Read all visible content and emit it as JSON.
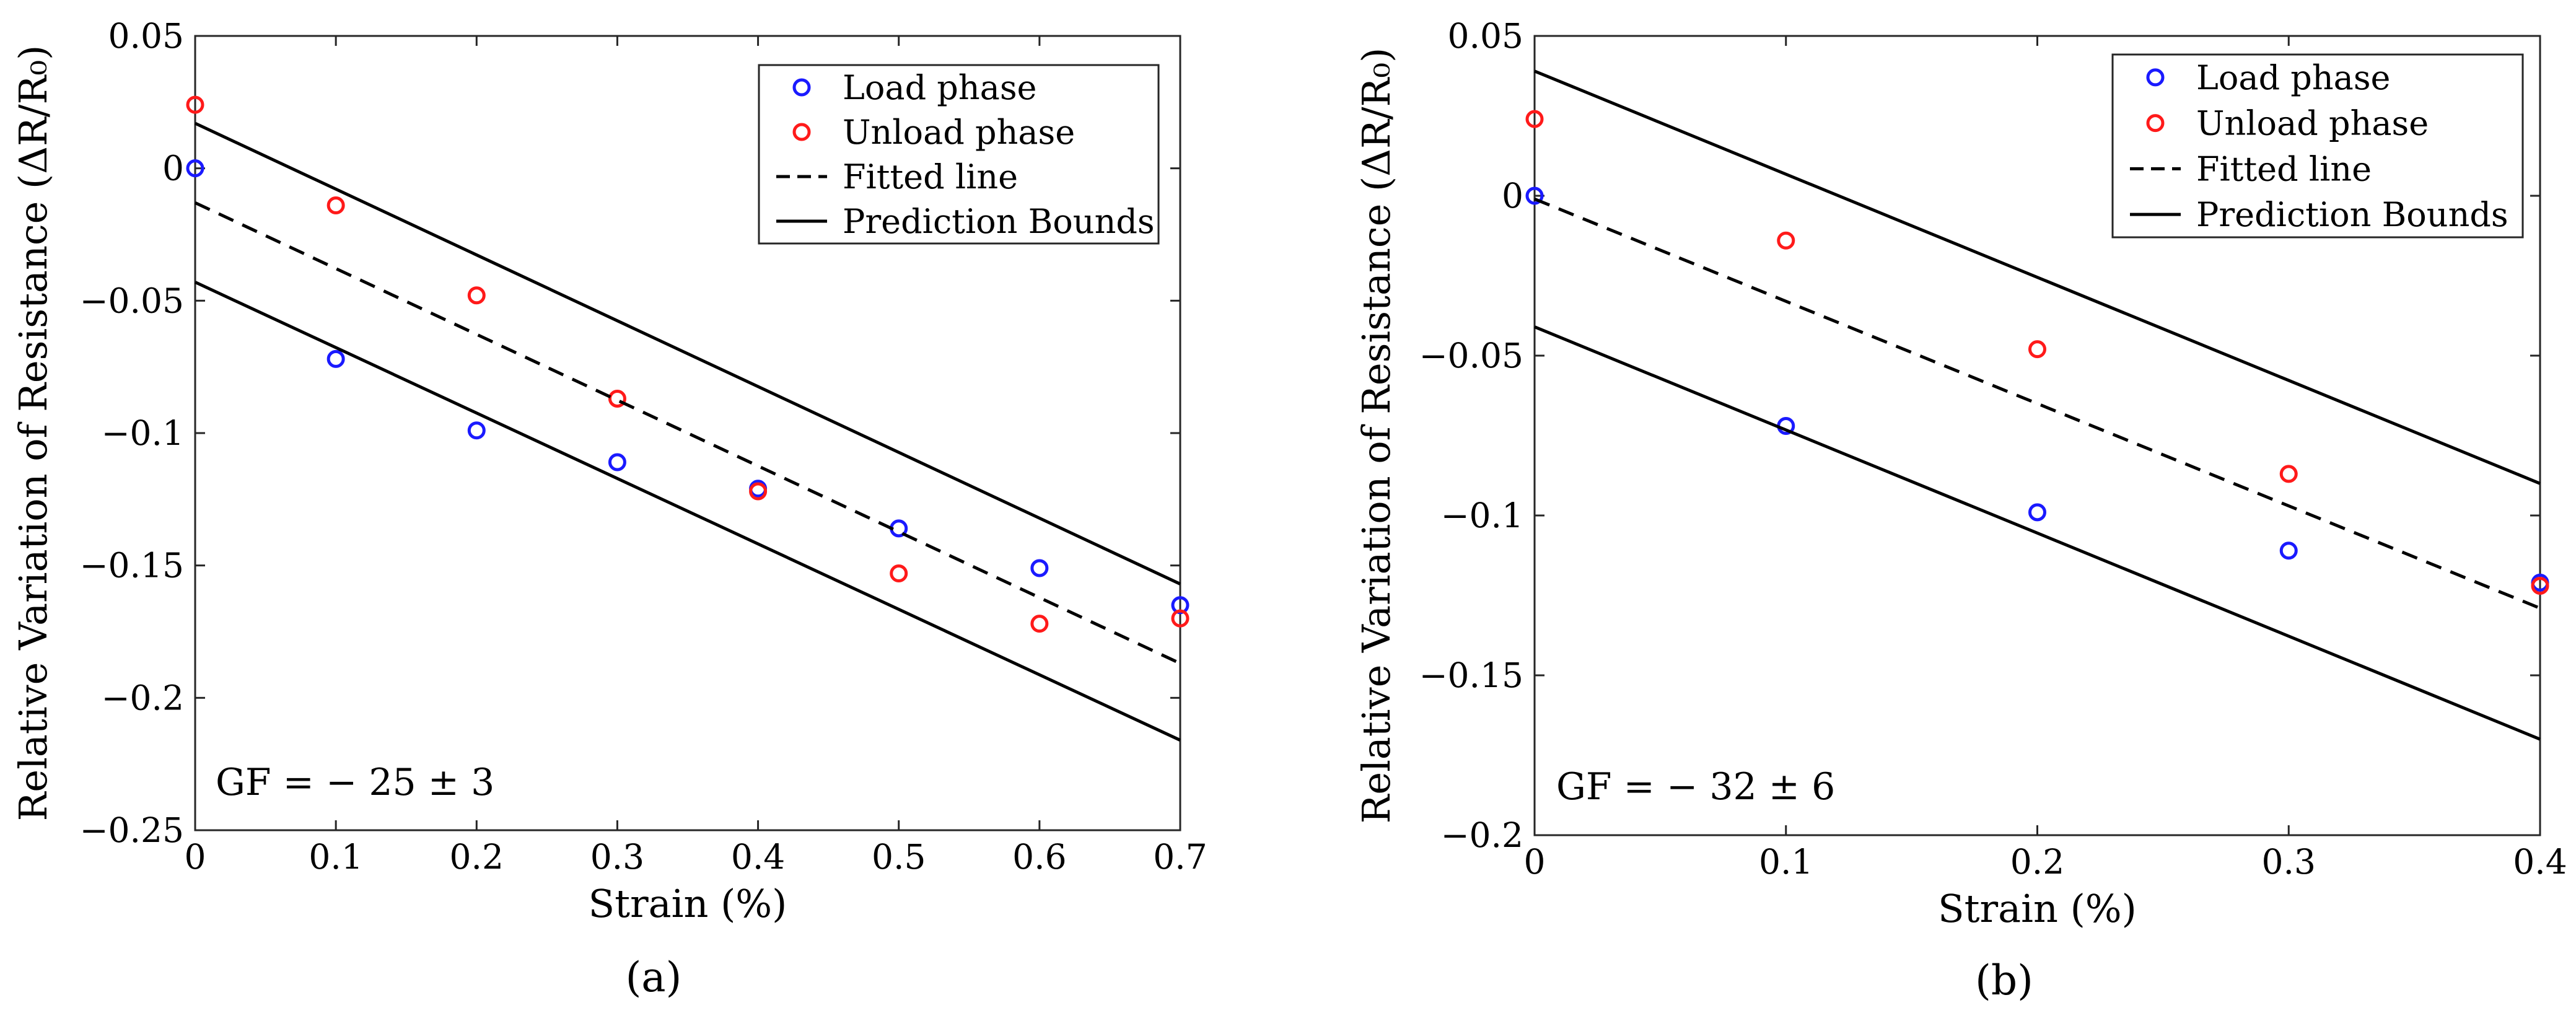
{
  "chart_data": [
    {
      "type": "scatter",
      "panel_label": "(a)",
      "xlabel": "Strain (%)",
      "ylabel": "Relative Variation of Resistance (ΔR/R₀)",
      "xlim": [
        0,
        0.7
      ],
      "ylim": [
        -0.25,
        0.05
      ],
      "xticks": [
        0,
        0.1,
        0.2,
        0.3,
        0.4,
        0.5,
        0.6,
        0.7
      ],
      "xtick_labels": [
        "0",
        "0.1",
        "0.2",
        "0.3",
        "0.4",
        "0.5",
        "0.6",
        "0.7"
      ],
      "yticks": [
        0.05,
        0,
        -0.05,
        -0.1,
        -0.15,
        -0.2,
        -0.25
      ],
      "ytick_labels": [
        "0.05",
        "0",
        "−0.05",
        "−0.1",
        "−0.15",
        "−0.2",
        "−0.25"
      ],
      "annotation": "GF = − 25 ± 3",
      "legend": {
        "placement": "top-right",
        "entries": [
          "Load phase",
          "Unload phase",
          "Fitted line",
          "Prediction Bounds"
        ]
      },
      "series": [
        {
          "name": "Load phase",
          "kind": "points",
          "color": "#1a1aff",
          "x": [
            0,
            0.1,
            0.2,
            0.3,
            0.4,
            0.5,
            0.6,
            0.7
          ],
          "y": [
            0,
            -0.072,
            -0.099,
            -0.111,
            -0.121,
            -0.136,
            -0.151,
            -0.165
          ]
        },
        {
          "name": "Unload phase",
          "kind": "points",
          "color": "#ff1a1a",
          "x": [
            0,
            0.1,
            0.2,
            0.3,
            0.4,
            0.5,
            0.6,
            0.7
          ],
          "y": [
            0.024,
            -0.014,
            -0.048,
            -0.087,
            -0.122,
            -0.153,
            -0.172,
            -0.17
          ]
        },
        {
          "name": "Fitted line",
          "kind": "dashed",
          "color": "#000000",
          "x": [
            0,
            0.7
          ],
          "y": [
            -0.013,
            -0.187
          ]
        },
        {
          "name": "Prediction Bounds",
          "kind": "solid",
          "color": "#000000",
          "x": [
            0,
            0.7
          ],
          "y": [
            0.017,
            -0.157
          ]
        },
        {
          "name": "Prediction Bounds",
          "kind": "solid",
          "color": "#000000",
          "x": [
            0,
            0.7
          ],
          "y": [
            -0.043,
            -0.216
          ]
        }
      ]
    },
    {
      "type": "scatter",
      "panel_label": "(b)",
      "xlabel": "Strain (%)",
      "ylabel": "Relative Variation of Resistance (ΔR/R₀)",
      "xlim": [
        0,
        0.4
      ],
      "ylim": [
        -0.2,
        0.05
      ],
      "xticks": [
        0,
        0.1,
        0.2,
        0.3,
        0.4
      ],
      "xtick_labels": [
        "0",
        "0.1",
        "0.2",
        "0.3",
        "0.4"
      ],
      "yticks": [
        0.05,
        0,
        -0.05,
        -0.1,
        -0.15,
        -0.2
      ],
      "ytick_labels": [
        "0.05",
        "0",
        "−0.05",
        "−0.1",
        "−0.15",
        "−0.2"
      ],
      "annotation": "GF = − 32 ± 6",
      "legend": {
        "placement": "top-right",
        "entries": [
          "Load phase",
          "Unload phase",
          "Fitted line",
          "Prediction Bounds"
        ]
      },
      "series": [
        {
          "name": "Load phase",
          "kind": "points",
          "color": "#1a1aff",
          "x": [
            0,
            0.1,
            0.2,
            0.3,
            0.4
          ],
          "y": [
            0,
            -0.072,
            -0.099,
            -0.111,
            -0.121
          ]
        },
        {
          "name": "Unload phase",
          "kind": "points",
          "color": "#ff1a1a",
          "x": [
            0,
            0.1,
            0.2,
            0.3,
            0.4
          ],
          "y": [
            0.024,
            -0.014,
            -0.048,
            -0.087,
            -0.122
          ]
        },
        {
          "name": "Fitted line",
          "kind": "dashed",
          "color": "#000000",
          "x": [
            0,
            0.4
          ],
          "y": [
            -0.001,
            -0.129
          ]
        },
        {
          "name": "Prediction Bounds",
          "kind": "solid",
          "color": "#000000",
          "x": [
            0,
            0.4
          ],
          "y": [
            0.039,
            -0.09
          ]
        },
        {
          "name": "Prediction Bounds",
          "kind": "solid",
          "color": "#000000",
          "x": [
            0,
            0.4
          ],
          "y": [
            -0.041,
            -0.17
          ]
        }
      ]
    }
  ]
}
